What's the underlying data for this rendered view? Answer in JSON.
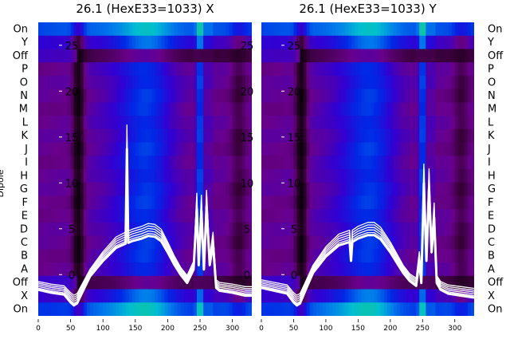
{
  "chart_data": [
    {
      "type": "heatmap",
      "title": "26.1 (HexE33=1033) X",
      "ylabel": "Dipole",
      "row_labels": [
        "On",
        "Y",
        "Off",
        "P",
        "O",
        "N",
        "M",
        "L",
        "K",
        "J",
        "I",
        "H",
        "G",
        "F",
        "E",
        "D",
        "C",
        "B",
        "A",
        "Off",
        "X",
        "On"
      ],
      "xlim": [
        0,
        330
      ],
      "x_ticks": [
        0,
        50,
        100,
        150,
        200,
        250,
        300
      ],
      "overlay_ylim": [
        -4.5,
        27.5
      ],
      "overlay_ticks": [
        0,
        5,
        10,
        15,
        20,
        25
      ],
      "overlay_profile": {
        "x": [
          0,
          20,
          40,
          50,
          55,
          60,
          70,
          80,
          100,
          120,
          135,
          137,
          139,
          145,
          160,
          170,
          180,
          190,
          200,
          210,
          220,
          230,
          240,
          245,
          248,
          252,
          256,
          260,
          265,
          270,
          275,
          280,
          300,
          320,
          330
        ],
        "y": [
          -1.2,
          -1.5,
          -1.7,
          -2.5,
          -2.8,
          -2.6,
          -1.2,
          0.2,
          2.0,
          3.5,
          4.0,
          15.0,
          4.1,
          4.3,
          4.6,
          4.9,
          4.8,
          4.3,
          3.0,
          1.6,
          0.4,
          -0.5,
          1.0,
          8.0,
          1.5,
          7.8,
          1.0,
          8.3,
          1.5,
          4.0,
          -1.0,
          -1.3,
          -1.5,
          -1.8,
          -1.8
        ]
      }
    },
    {
      "type": "heatmap",
      "title": "26.1 (HexE33=1033) Y",
      "ylabel": "",
      "row_labels": [
        "On",
        "Y",
        "Off",
        "P",
        "O",
        "N",
        "M",
        "L",
        "K",
        "J",
        "I",
        "H",
        "G",
        "F",
        "E",
        "D",
        "C",
        "B",
        "A",
        "Off",
        "X",
        "On"
      ],
      "xlim": [
        0,
        330
      ],
      "x_ticks": [
        0,
        50,
        100,
        150,
        200,
        250,
        300
      ],
      "overlay_ylim": [
        -4.5,
        27.5
      ],
      "overlay_ticks": [
        0,
        5,
        10,
        15,
        20,
        25
      ],
      "overlay_profile": {
        "x": [
          0,
          20,
          40,
          50,
          55,
          60,
          70,
          80,
          100,
          120,
          137,
          139,
          141,
          150,
          165,
          175,
          185,
          200,
          210,
          220,
          230,
          240,
          245,
          248,
          252,
          256,
          260,
          264,
          268,
          272,
          278,
          290,
          310,
          330
        ],
        "y": [
          -1.0,
          -1.3,
          -1.6,
          -2.5,
          -2.8,
          -2.6,
          -1.0,
          0.6,
          2.5,
          3.8,
          4.2,
          2.0,
          4.2,
          4.6,
          5.0,
          5.0,
          4.5,
          3.0,
          1.8,
          0.6,
          -0.3,
          -0.8,
          2.0,
          -0.5,
          11.0,
          2.0,
          10.5,
          3.0,
          7.0,
          -0.5,
          -1.2,
          -1.6,
          -1.8,
          -2.0
        ]
      }
    }
  ]
}
